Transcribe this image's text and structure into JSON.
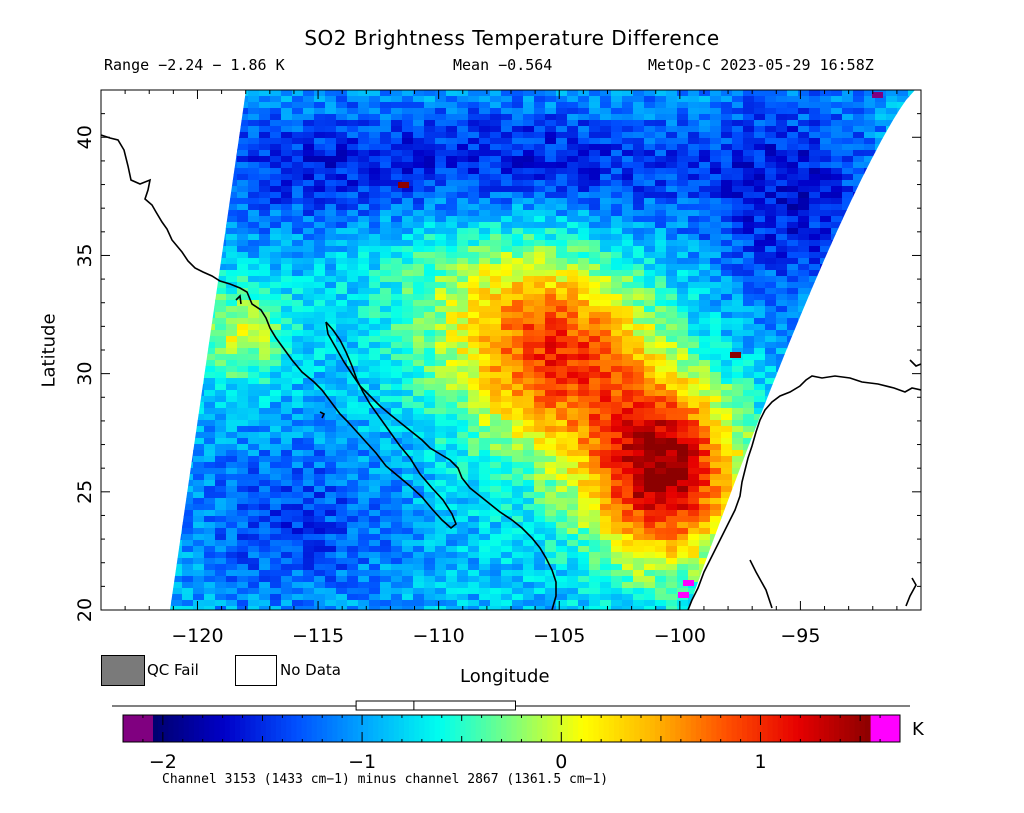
{
  "title": "SO2 Brightness Temperature Difference",
  "range_text": "Range −2.24 − 1.86 K",
  "mean_text": "Mean −0.564",
  "satellite_text": "MetOp-C 2023-05-29 16:58Z",
  "x_axis_label": "Longitude",
  "y_axis_label": "Latitude",
  "x_ticks": [
    "−120",
    "−115",
    "−110",
    "−105",
    "−100",
    "−95"
  ],
  "y_ticks": [
    "20",
    "25",
    "30",
    "35",
    "40"
  ],
  "legend": {
    "qc_fail": "QC Fail",
    "no_data": "No Data"
  },
  "colorbar": {
    "unit": "K",
    "ticks": [
      "−2",
      "−1",
      "0",
      "1"
    ],
    "range": [
      -2.2,
      1.7
    ],
    "mean_box": {
      "low": -1.03,
      "mid": -0.74,
      "high": -0.23
    },
    "colors": [
      "#800080",
      "#00006e",
      "#0000c8",
      "#0050ff",
      "#00aaff",
      "#00ffee",
      "#7dff7d",
      "#ffff00",
      "#ffb400",
      "#ff5000",
      "#e60000",
      "#8c0000",
      "#ff00ff"
    ]
  },
  "footer_text": "Channel 3153 (1433 cm−1) minus channel 2867 (1361.5 cm−1)",
  "map": {
    "lon_range": [
      -124,
      -90
    ],
    "lat_range": [
      20,
      42
    ],
    "grid_on": false
  }
}
